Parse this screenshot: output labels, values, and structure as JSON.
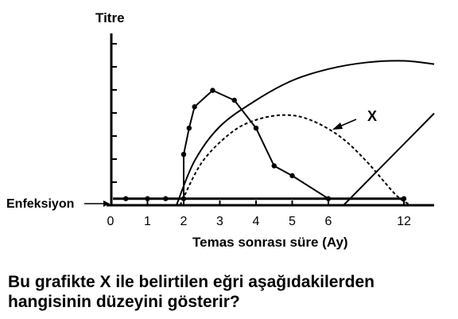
{
  "question": {
    "line1": "Bu grafikte X ile belirtilen eğri aşağıdakilerden",
    "line2": "hangisinin düzeyini gösterir?"
  },
  "chart_data": {
    "type": "line",
    "ylabel": "Titre",
    "xlabel": "Temas sonrası süre (Ay)",
    "baseline_label": "Enfeksiyon",
    "callout_label": "X",
    "x_ticks": [
      "0",
      "1",
      "2",
      "3",
      "4",
      "5",
      "6",
      "12"
    ],
    "y_tick_count": 7,
    "series": [
      {
        "style": "solid-dots",
        "x": [
          0.4,
          1.0,
          1.5,
          2.0,
          2.0,
          2.15,
          2.3,
          2.8,
          3.4,
          4.0,
          4.5,
          5.0,
          6.0,
          8.0
        ],
        "y": [
          0.04,
          0.04,
          0.04,
          0.04,
          0.31,
          0.47,
          0.6,
          0.7,
          0.64,
          0.47,
          0.24,
          0.18,
          0.04,
          0.04
        ]
      },
      {
        "style": "solid",
        "x": [
          1.8,
          2.3,
          3.0,
          4.0,
          5.0,
          6.0,
          7.0,
          8.0,
          8.8
        ],
        "y": [
          0.0,
          0.27,
          0.48,
          0.64,
          0.76,
          0.83,
          0.87,
          0.88,
          0.86
        ]
      },
      {
        "style": "dashed",
        "x": [
          1.9,
          2.5,
          3.3,
          4.0,
          4.8,
          5.5,
          6.3,
          7.0,
          7.8,
          8.2
        ],
        "y": [
          0.0,
          0.26,
          0.44,
          0.52,
          0.55,
          0.52,
          0.42,
          0.27,
          0.06,
          0.0
        ]
      },
      {
        "style": "solid",
        "x": [
          6.4,
          8.8
        ],
        "y": [
          0.0,
          0.56
        ]
      }
    ],
    "baseline": {
      "x": [
        0,
        8.0
      ],
      "y": 0.04
    }
  }
}
